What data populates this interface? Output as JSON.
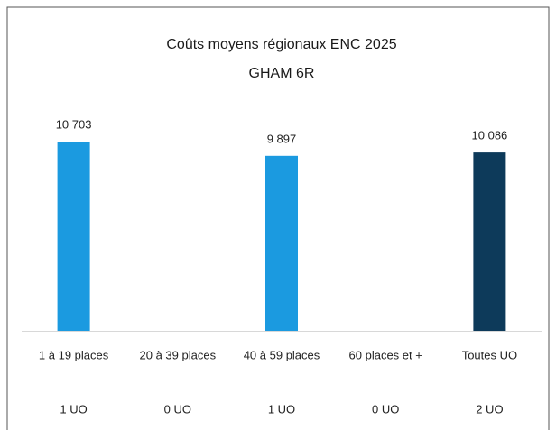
{
  "chart_data": {
    "type": "bar",
    "title": "Coûts moyens régionaux ENC 2025",
    "subtitle": "GHAM 6R",
    "categories": [
      "1 à 19 places",
      "20 à 39 places",
      "40 à 59 places",
      "60 places et +",
      "Toutes UO"
    ],
    "unit_counts": [
      "1 UO",
      "0 UO",
      "1 UO",
      "0 UO",
      "2 UO"
    ],
    "values": [
      10703,
      null,
      9897,
      null,
      10086
    ],
    "value_labels": [
      "10 703",
      null,
      "9 897",
      null,
      "10 086"
    ],
    "colors": [
      "#1b9ae0",
      "#1b9ae0",
      "#1b9ae0",
      "#1b9ae0",
      "#0d3a5a"
    ]
  }
}
